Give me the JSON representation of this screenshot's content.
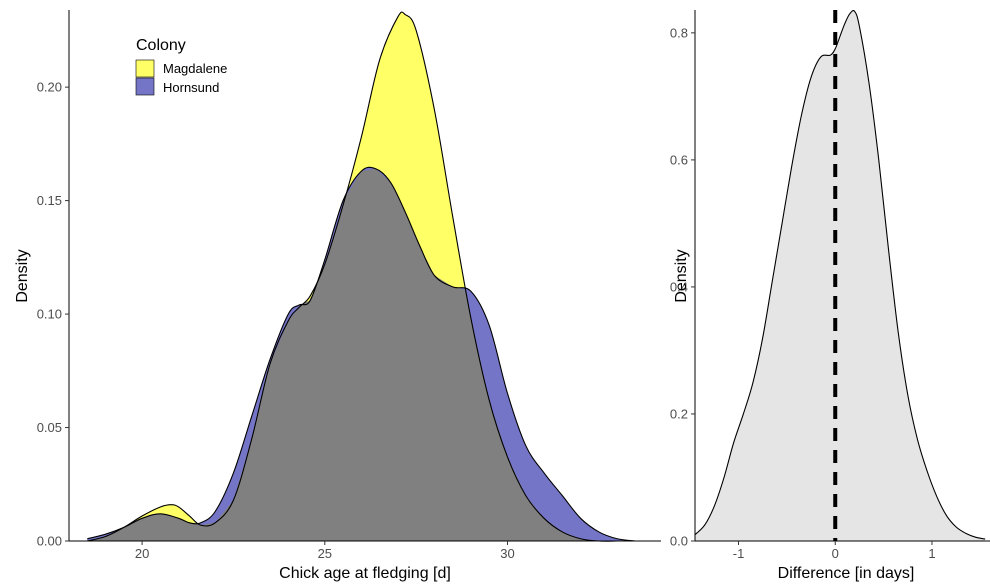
{
  "chart_data": [
    {
      "type": "area",
      "subtype": "density",
      "xlabel": "Chick age at fledging [d]",
      "ylabel": "Density",
      "xlim": [
        18,
        34.2
      ],
      "ylim": [
        0,
        0.234
      ],
      "xticks": [
        20,
        25,
        30
      ],
      "yticks": [
        0.0,
        0.05,
        0.1,
        0.15,
        0.2
      ],
      "ytick_labels": [
        "0.00",
        "0.05",
        "0.10",
        "0.15",
        "0.20"
      ],
      "grid": false,
      "legend": {
        "title": "Colony",
        "position": "top-left",
        "entries": [
          {
            "label": "Magdalene",
            "color": "#ffff66"
          },
          {
            "label": "Hornsund",
            "color": "#7575c8"
          }
        ]
      },
      "overlap_color": "#808080",
      "series": [
        {
          "name": "Magdalene",
          "color": "#ffff66",
          "x": [
            18.5,
            19.0,
            19.5,
            20.0,
            20.5,
            20.8,
            21.0,
            21.3,
            21.6,
            22.0,
            22.5,
            23.0,
            23.5,
            24.0,
            24.3,
            24.6,
            25.0,
            25.5,
            26.0,
            26.5,
            27.0,
            27.2,
            27.5,
            28.0,
            28.5,
            29.0,
            29.5,
            30.0,
            30.5,
            31.0,
            31.5,
            32.0,
            32.5,
            33.0
          ],
          "y": [
            0.0,
            0.002,
            0.006,
            0.011,
            0.015,
            0.016,
            0.015,
            0.011,
            0.007,
            0.008,
            0.018,
            0.045,
            0.078,
            0.097,
            0.103,
            0.108,
            0.122,
            0.148,
            0.178,
            0.212,
            0.231,
            0.232,
            0.225,
            0.19,
            0.143,
            0.098,
            0.062,
            0.037,
            0.02,
            0.01,
            0.004,
            0.001,
            0.0,
            0.0
          ]
        },
        {
          "name": "Hornsund",
          "color": "#7575c8",
          "x": [
            18.5,
            19.0,
            19.5,
            20.0,
            20.5,
            21.0,
            21.3,
            21.6,
            22.0,
            22.5,
            23.0,
            23.5,
            24.0,
            24.3,
            24.6,
            25.0,
            25.5,
            26.0,
            26.4,
            26.8,
            27.2,
            27.6,
            28.0,
            28.5,
            29.0,
            29.5,
            30.0,
            30.5,
            31.0,
            31.5,
            32.0,
            32.5,
            33.0,
            33.5
          ],
          "y": [
            0.001,
            0.003,
            0.006,
            0.01,
            0.012,
            0.01,
            0.008,
            0.008,
            0.013,
            0.03,
            0.055,
            0.08,
            0.1,
            0.104,
            0.106,
            0.124,
            0.15,
            0.163,
            0.164,
            0.158,
            0.145,
            0.13,
            0.117,
            0.112,
            0.11,
            0.095,
            0.065,
            0.042,
            0.03,
            0.02,
            0.01,
            0.004,
            0.001,
            0.0
          ]
        }
      ]
    },
    {
      "type": "area",
      "subtype": "density",
      "xlabel": "Difference [in days]",
      "ylabel": "Density",
      "xlim": [
        -1.45,
        1.6
      ],
      "ylim": [
        0,
        0.836
      ],
      "xticks": [
        -1,
        0,
        1
      ],
      "yticks": [
        0.0,
        0.2,
        0.4,
        0.6,
        0.8
      ],
      "ytick_labels": [
        "0.0",
        "0.2",
        "0.4",
        "0.6",
        "0.8"
      ],
      "grid": false,
      "fill_color": "#e5e5e5",
      "vline": {
        "x": 0,
        "style": "dashed",
        "color": "#000000"
      },
      "series": [
        {
          "color": "#e5e5e5",
          "x": [
            -1.45,
            -1.35,
            -1.25,
            -1.15,
            -1.05,
            -0.95,
            -0.85,
            -0.75,
            -0.65,
            -0.55,
            -0.45,
            -0.35,
            -0.25,
            -0.15,
            -0.05,
            0.0,
            0.05,
            0.1,
            0.15,
            0.2,
            0.25,
            0.35,
            0.45,
            0.55,
            0.65,
            0.75,
            0.85,
            0.95,
            1.05,
            1.15,
            1.25,
            1.35,
            1.45,
            1.55
          ],
          "y": [
            0.01,
            0.025,
            0.055,
            0.1,
            0.155,
            0.2,
            0.25,
            0.32,
            0.41,
            0.5,
            0.59,
            0.67,
            0.73,
            0.762,
            0.765,
            0.775,
            0.795,
            0.815,
            0.83,
            0.834,
            0.81,
            0.72,
            0.6,
            0.46,
            0.33,
            0.23,
            0.16,
            0.11,
            0.07,
            0.04,
            0.022,
            0.012,
            0.006,
            0.003
          ]
        }
      ]
    }
  ]
}
